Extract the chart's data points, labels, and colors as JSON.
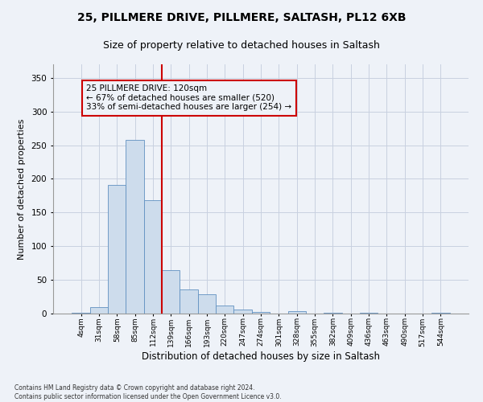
{
  "title1": "25, PILLMERE DRIVE, PILLMERE, SALTASH, PL12 6XB",
  "title2": "Size of property relative to detached houses in Saltash",
  "xlabel": "Distribution of detached houses by size in Saltash",
  "ylabel": "Number of detached properties",
  "footnote": "Contains HM Land Registry data © Crown copyright and database right 2024.\nContains public sector information licensed under the Open Government Licence v3.0.",
  "bin_labels": [
    "4sqm",
    "31sqm",
    "58sqm",
    "85sqm",
    "112sqm",
    "139sqm",
    "166sqm",
    "193sqm",
    "220sqm",
    "247sqm",
    "274sqm",
    "301sqm",
    "328sqm",
    "355sqm",
    "382sqm",
    "409sqm",
    "436sqm",
    "463sqm",
    "490sqm",
    "517sqm",
    "544sqm"
  ],
  "bar_values": [
    1,
    10,
    191,
    258,
    168,
    65,
    36,
    29,
    12,
    6,
    2,
    0,
    4,
    0,
    1,
    0,
    1,
    0,
    0,
    0,
    1
  ],
  "vline_x": 4.5,
  "annotation_text": "25 PILLMERE DRIVE: 120sqm\n← 67% of detached houses are smaller (520)\n33% of semi-detached houses are larger (254) →",
  "bar_color": "#cddcec",
  "bar_edge_color": "#6090c0",
  "vline_color": "#cc0000",
  "annotation_box_color": "#cc0000",
  "bg_color": "#eef2f8",
  "grid_color": "#c8d0e0",
  "ylim": [
    0,
    370
  ],
  "yticks": [
    0,
    50,
    100,
    150,
    200,
    250,
    300,
    350
  ],
  "title1_fontsize": 10,
  "title2_fontsize": 9,
  "xlabel_fontsize": 8.5,
  "ylabel_fontsize": 8,
  "annot_fontsize": 7.5,
  "tick_fontsize": 6.5,
  "ytick_fontsize": 7.5,
  "footnote_fontsize": 5.5
}
